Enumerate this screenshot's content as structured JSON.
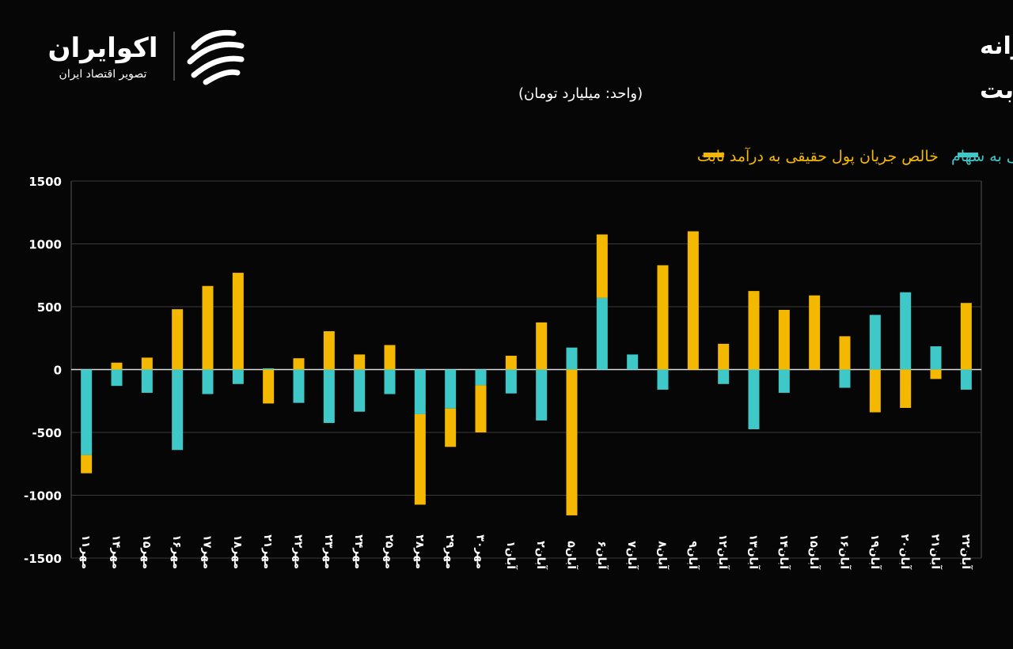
{
  "logo": {
    "name": "اکوایران",
    "tagline": "تصویر اقتصاد ایران"
  },
  "chart_data": {
    "type": "bar",
    "stacked": true,
    "title": "روند جریان پول حقیقی روزانه",
    "subtitle": "در سهام و صندوق‌های درآمد ثابت",
    "y_label": "(واحد: میلیارد تومان)",
    "categories": [
      "مهر۱۱",
      "مهر۱۴",
      "مهر۱۵",
      "مهر۱۶",
      "مهر۱۷",
      "مهر۱۸",
      "مهر۲۱",
      "مهر۲۲",
      "مهر۲۳",
      "مهر۲۴",
      "مهر۲۵",
      "مهر۲۸",
      "مهر۲۹",
      "مهر۳۰",
      "آبان۱",
      "آبان۲",
      "آبان۵",
      "آبان۶",
      "آبان۷",
      "آبان۸",
      "آبان۹",
      "آبان۱۲",
      "آبان۱۳",
      "آبان۱۴",
      "آبان۱۵",
      "آبان۱۶",
      "آبان۱۹",
      "آبان۲۰",
      "آبان۲۱",
      "آبان۲۲"
    ],
    "series": [
      {
        "name": "خالص جریان پول حقیقی به سهام",
        "color": "#3ec8c8",
        "values": [
          -680,
          -130,
          -185,
          -640,
          -195,
          -115,
          10,
          -265,
          -425,
          -335,
          -195,
          -355,
          -310,
          -125,
          -190,
          -405,
          175,
          570,
          120,
          -160,
          0,
          -115,
          -475,
          -185,
          0,
          -145,
          435,
          615,
          185,
          -160
        ]
      },
      {
        "name": "خالص جریان پول حقیقی به درآمد ثابت",
        "color": "#f5b800",
        "values": [
          -145,
          55,
          95,
          480,
          665,
          770,
          -270,
          90,
          305,
          120,
          195,
          -720,
          -305,
          -375,
          110,
          375,
          -1160,
          505,
          0,
          830,
          1100,
          205,
          625,
          475,
          590,
          265,
          -340,
          -305,
          -75,
          530
        ]
      }
    ],
    "ylim": [
      -1500,
      1500
    ],
    "yticks": [
      -1500,
      -1000,
      -500,
      0,
      500,
      1000,
      1500
    ],
    "grid": true
  }
}
